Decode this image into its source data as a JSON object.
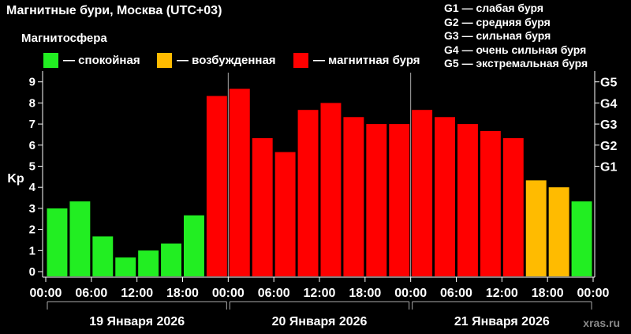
{
  "title": "Магнитные бури, Москва (UTC+03)",
  "subtitle": "Магнитосфера",
  "legend": [
    {
      "label": "— спокойная",
      "color": "#22ee22"
    },
    {
      "label": "— возбужденная",
      "color": "#ffbb00"
    },
    {
      "label": "— магнитная буря",
      "color": "#ff0000"
    }
  ],
  "g_scale": [
    "G1 — слабая буря",
    "G2 — средняя буря",
    "G3 — сильная буря",
    "G4 — очень сильная буря",
    "G5 — экстремальная буря"
  ],
  "watermark": "xras.ru",
  "chart_data": {
    "type": "bar",
    "ylabel": "Kp",
    "ylim": [
      0,
      9
    ],
    "y_ticks": [
      0,
      1,
      2,
      3,
      4,
      5,
      6,
      7,
      8,
      9
    ],
    "right_ticks": [
      {
        "label": "G1",
        "y": 5
      },
      {
        "label": "G2",
        "y": 6
      },
      {
        "label": "G3",
        "y": 7
      },
      {
        "label": "G4",
        "y": 8
      },
      {
        "label": "G5",
        "y": 9
      }
    ],
    "x_tick_labels": [
      "00:00",
      "06:00",
      "12:00",
      "18:00",
      "00:00",
      "06:00",
      "12:00",
      "18:00",
      "00:00",
      "06:00",
      "12:00",
      "18:00",
      "00:00"
    ],
    "days": [
      "19 Января 2026",
      "20 Января 2026",
      "21 Января 2026"
    ],
    "values": [
      3.0,
      3.33,
      1.67,
      0.67,
      1.0,
      1.33,
      2.67,
      8.33,
      8.67,
      6.33,
      5.67,
      7.67,
      8.0,
      7.33,
      7.0,
      7.0,
      7.67,
      7.33,
      7.0,
      6.67,
      6.33,
      4.33,
      4.0,
      3.33
    ],
    "statuses": [
      "quiet",
      "quiet",
      "quiet",
      "quiet",
      "quiet",
      "quiet",
      "quiet",
      "storm",
      "storm",
      "storm",
      "storm",
      "storm",
      "storm",
      "storm",
      "storm",
      "storm",
      "storm",
      "storm",
      "storm",
      "storm",
      "storm",
      "active",
      "active",
      "quiet"
    ],
    "status_colors": {
      "quiet": "#22ee22",
      "active": "#ffbb00",
      "storm": "#ff0000"
    },
    "grid": false
  }
}
